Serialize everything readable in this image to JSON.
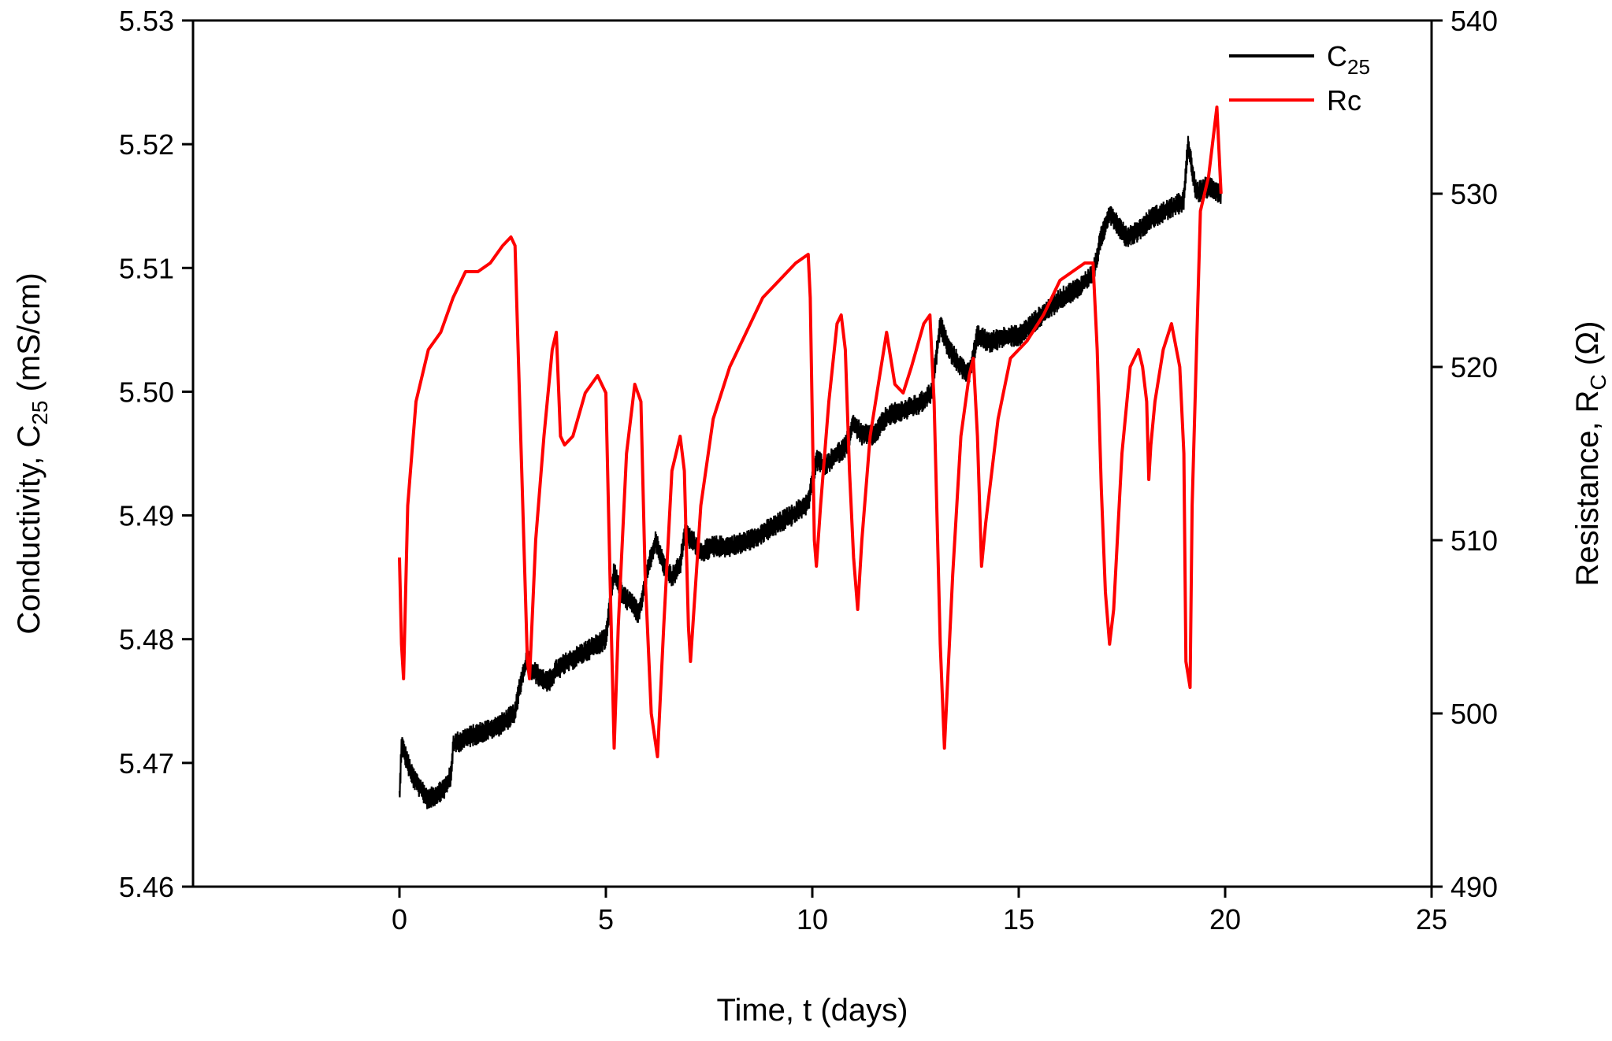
{
  "chart_data": {
    "type": "line",
    "title": "",
    "xlabel": "Time, t (days)",
    "ylabel_left": {
      "prefix": "Conductivity, C",
      "sub": "25",
      "suffix": " (mS/cm)"
    },
    "ylabel_right": {
      "prefix": "Resistance, R",
      "sub": "C",
      "suffix": " (Ω)"
    },
    "xlim": [
      -5,
      25
    ],
    "ylim_left": [
      5.46,
      5.53
    ],
    "ylim_right": [
      490,
      540
    ],
    "xticks": [
      "0",
      "5",
      "10",
      "15",
      "20",
      "25"
    ],
    "xtick_values": [
      0,
      5,
      10,
      15,
      20,
      25
    ],
    "yticks_left": [
      "5.46",
      "5.47",
      "5.48",
      "5.49",
      "5.50",
      "5.51",
      "5.52",
      "5.53"
    ],
    "ytick_values_left": [
      5.46,
      5.47,
      5.48,
      5.49,
      5.5,
      5.51,
      5.52,
      5.53
    ],
    "yticks_right": [
      "490",
      "500",
      "510",
      "520",
      "530",
      "540"
    ],
    "ytick_values_right": [
      490,
      500,
      510,
      520,
      530,
      540
    ],
    "grid": false,
    "legend_position": "top-right",
    "series": [
      {
        "name": "C",
        "name_sub": "25",
        "axis": "left",
        "color": "#000000",
        "noise": 0.0009,
        "x": [
          0,
          0.05,
          0.15,
          0.3,
          0.5,
          0.7,
          0.9,
          1.1,
          1.25,
          1.3,
          1.6,
          2.0,
          2.4,
          2.8,
          2.9,
          3.1,
          3.2,
          3.4,
          3.6,
          3.8,
          4.0,
          4.5,
          5.0,
          5.1,
          5.2,
          5.4,
          5.6,
          5.8,
          6.0,
          6.2,
          6.4,
          6.6,
          6.8,
          6.9,
          7.1,
          7.3,
          7.6,
          8.0,
          8.5,
          9.0,
          9.5,
          9.9,
          10.1,
          10.3,
          10.6,
          10.8,
          11.0,
          11.2,
          11.5,
          11.8,
          12.2,
          12.6,
          12.9,
          13.1,
          13.3,
          13.6,
          13.8,
          14.0,
          14.3,
          14.7,
          15.0,
          15.5,
          16.0,
          16.5,
          16.8,
          17.0,
          17.2,
          17.4,
          17.6,
          17.9,
          18.2,
          18.5,
          18.8,
          19.0,
          19.1,
          19.3,
          19.5,
          19.7,
          19.9
        ],
        "y": [
          5.467,
          5.4715,
          5.4705,
          5.469,
          5.468,
          5.467,
          5.4675,
          5.468,
          5.469,
          5.4715,
          5.472,
          5.4725,
          5.473,
          5.474,
          5.476,
          5.4785,
          5.4775,
          5.477,
          5.4765,
          5.4775,
          5.478,
          5.479,
          5.48,
          5.483,
          5.4855,
          5.4835,
          5.483,
          5.482,
          5.4855,
          5.488,
          5.486,
          5.485,
          5.486,
          5.4885,
          5.488,
          5.487,
          5.4875,
          5.4875,
          5.488,
          5.489,
          5.49,
          5.491,
          5.4945,
          5.494,
          5.495,
          5.4955,
          5.4975,
          5.4965,
          5.4965,
          5.498,
          5.4985,
          5.499,
          5.5,
          5.5055,
          5.5035,
          5.502,
          5.5015,
          5.5045,
          5.504,
          5.5045,
          5.5045,
          5.506,
          5.5075,
          5.5085,
          5.5095,
          5.5125,
          5.5145,
          5.5135,
          5.5125,
          5.513,
          5.514,
          5.5145,
          5.515,
          5.5155,
          5.52,
          5.516,
          5.5165,
          5.5165,
          5.516
        ]
      },
      {
        "name": "Rc",
        "axis": "right",
        "color": "#ff0000",
        "x": [
          0,
          0.05,
          0.1,
          0.2,
          0.4,
          0.7,
          1.0,
          1.3,
          1.6,
          1.9,
          2.2,
          2.5,
          2.7,
          2.8,
          3.1,
          3.15,
          3.3,
          3.5,
          3.7,
          3.8,
          3.9,
          4.0,
          4.2,
          4.5,
          4.8,
          5.0,
          5.1,
          5.2,
          5.3,
          5.5,
          5.7,
          5.85,
          5.95,
          6.1,
          6.25,
          6.4,
          6.6,
          6.8,
          6.9,
          7.0,
          7.05,
          7.3,
          7.6,
          8.0,
          8.4,
          8.8,
          9.2,
          9.6,
          9.9,
          9.95,
          10.05,
          10.1,
          10.2,
          10.4,
          10.6,
          10.7,
          10.8,
          10.9,
          11.0,
          11.1,
          11.2,
          11.4,
          11.6,
          11.8,
          12.0,
          12.2,
          12.4,
          12.7,
          12.85,
          12.95,
          13.1,
          13.2,
          13.4,
          13.6,
          13.8,
          13.9,
          14.0,
          14.1,
          14.2,
          14.5,
          14.8,
          15.2,
          15.6,
          16.0,
          16.3,
          16.6,
          16.8,
          16.9,
          17.0,
          17.1,
          17.2,
          17.3,
          17.5,
          17.7,
          17.9,
          18.0,
          18.1,
          18.15,
          18.2,
          18.3,
          18.5,
          18.7,
          18.9,
          19.0,
          19.05,
          19.15,
          19.2,
          19.4,
          19.6,
          19.8,
          19.9
        ],
        "y": [
          509,
          504,
          502,
          512,
          518,
          521,
          522,
          524,
          525.5,
          525.5,
          526,
          527,
          527.5,
          527,
          503,
          502,
          510,
          516,
          521,
          522,
          516,
          515.5,
          516,
          518.5,
          519.5,
          518.5,
          508,
          498,
          505,
          515,
          519,
          518,
          508,
          500,
          497.5,
          505,
          514,
          516,
          514,
          505,
          503,
          512,
          517,
          520,
          522,
          524,
          525,
          526,
          526.5,
          524,
          510,
          508.5,
          512,
          518,
          522.5,
          523,
          521,
          514,
          509,
          506,
          510,
          516,
          519,
          522,
          519,
          518.5,
          520,
          522.5,
          523,
          518,
          504,
          498,
          508,
          516,
          519.5,
          520.5,
          516,
          508.5,
          511,
          517,
          520.5,
          521.5,
          523,
          525,
          525.5,
          526,
          526,
          521,
          513,
          507,
          504,
          506,
          515,
          520,
          521,
          520,
          518,
          513.5,
          515.5,
          518,
          521,
          522.5,
          520,
          515,
          503,
          501.5,
          512,
          529,
          531,
          535,
          530
        ]
      }
    ]
  }
}
